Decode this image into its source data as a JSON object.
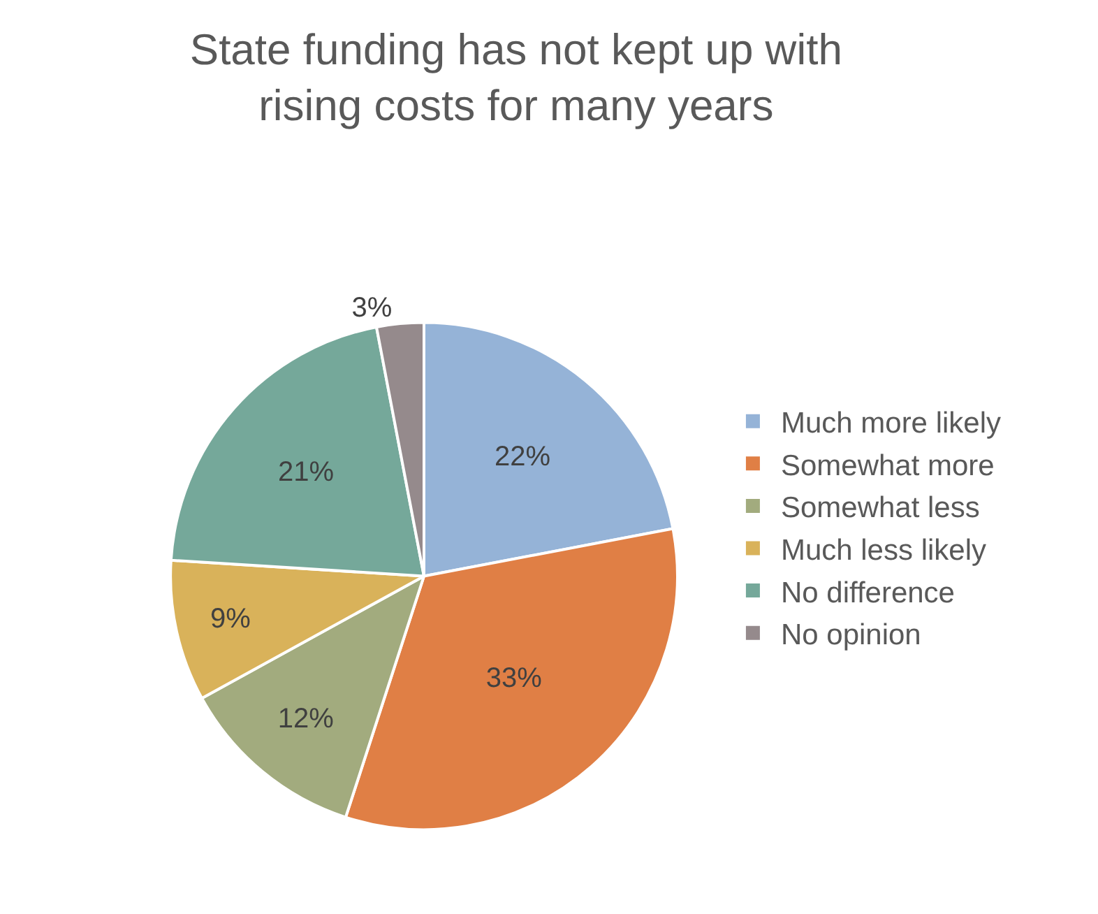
{
  "chart_data": {
    "type": "pie",
    "title": "State funding has not kept up with\nrising costs for many years",
    "categories": [
      "Much more likely",
      "Somewhat more",
      "Somewhat less",
      "Much less likely",
      "No difference",
      "No opinion"
    ],
    "values": [
      22,
      33,
      12,
      9,
      21,
      3
    ],
    "colors": [
      "#95b3d7",
      "#e07f45",
      "#a2ab7e",
      "#d9b25a",
      "#75a89a",
      "#958a8c"
    ],
    "value_labels": [
      "22%",
      "33%",
      "12%",
      "9%",
      "21%",
      "3%"
    ],
    "legend": "right"
  }
}
